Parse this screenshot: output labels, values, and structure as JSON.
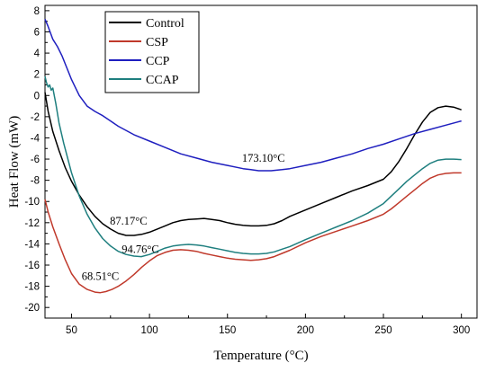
{
  "chart_data": {
    "type": "line",
    "xlabel": "Temperature (°C)",
    "ylabel": "Heat Flow (mW)",
    "xlim": [
      33,
      310
    ],
    "ylim": [
      -21,
      8.5
    ],
    "xticks": [
      50,
      100,
      150,
      200,
      250,
      300
    ],
    "yticks": [
      8,
      6,
      4,
      2,
      0,
      -2,
      -4,
      -6,
      -8,
      -10,
      -12,
      -14,
      -16,
      -18,
      -20
    ],
    "grid": false,
    "legend_position": "top-left",
    "series": [
      {
        "name": "Control",
        "color": "#000000",
        "x": [
          33,
          35,
          38,
          42,
          46,
          50,
          55,
          60,
          65,
          70,
          75,
          80,
          85,
          90,
          95,
          100,
          105,
          110,
          115,
          120,
          125,
          130,
          135,
          140,
          145,
          150,
          155,
          160,
          165,
          170,
          175,
          180,
          185,
          190,
          200,
          210,
          220,
          230,
          240,
          250,
          255,
          260,
          265,
          270,
          275,
          280,
          285,
          290,
          295,
          300
        ],
        "y": [
          0.3,
          -1.5,
          -3.4,
          -5.2,
          -6.8,
          -8.1,
          -9.4,
          -10.5,
          -11.4,
          -12.1,
          -12.6,
          -13.0,
          -13.2,
          -13.2,
          -13.1,
          -12.9,
          -12.6,
          -12.3,
          -12.0,
          -11.8,
          -11.7,
          -11.65,
          -11.6,
          -11.7,
          -11.8,
          -12.0,
          -12.15,
          -12.25,
          -12.3,
          -12.3,
          -12.25,
          -12.1,
          -11.8,
          -11.4,
          -10.8,
          -10.2,
          -9.6,
          -9.0,
          -8.5,
          -7.9,
          -7.2,
          -6.2,
          -5.0,
          -3.7,
          -2.5,
          -1.6,
          -1.15,
          -1.0,
          -1.1,
          -1.35
        ]
      },
      {
        "name": "CSP",
        "color": "#c0392b",
        "x": [
          33,
          35,
          38,
          42,
          46,
          50,
          55,
          60,
          65,
          68.51,
          72,
          76,
          80,
          85,
          90,
          95,
          100,
          105,
          110,
          115,
          120,
          125,
          130,
          135,
          140,
          145,
          150,
          155,
          160,
          165,
          170,
          175,
          180,
          185,
          190,
          200,
          210,
          220,
          230,
          240,
          250,
          255,
          260,
          265,
          270,
          275,
          280,
          285,
          290,
          295,
          300
        ],
        "y": [
          -9.8,
          -11.0,
          -12.4,
          -14.0,
          -15.5,
          -16.8,
          -17.8,
          -18.3,
          -18.55,
          -18.6,
          -18.5,
          -18.3,
          -18.0,
          -17.5,
          -16.9,
          -16.2,
          -15.6,
          -15.1,
          -14.8,
          -14.6,
          -14.55,
          -14.6,
          -14.7,
          -14.9,
          -15.05,
          -15.2,
          -15.35,
          -15.45,
          -15.5,
          -15.55,
          -15.5,
          -15.4,
          -15.2,
          -14.9,
          -14.6,
          -13.9,
          -13.3,
          -12.8,
          -12.3,
          -11.8,
          -11.2,
          -10.7,
          -10.1,
          -9.5,
          -8.9,
          -8.3,
          -7.8,
          -7.5,
          -7.35,
          -7.3,
          -7.3
        ]
      },
      {
        "name": "CCP",
        "color": "#1f1fbf",
        "x": [
          33,
          35,
          38,
          41,
          44,
          47,
          50,
          55,
          60,
          65,
          70,
          75,
          80,
          90,
          100,
          110,
          120,
          130,
          140,
          150,
          160,
          165,
          170,
          173.1,
          178,
          185,
          190,
          200,
          210,
          220,
          230,
          240,
          250,
          260,
          270,
          280,
          290,
          300
        ],
        "y": [
          7.2,
          6.5,
          5.3,
          4.6,
          3.7,
          2.6,
          1.5,
          0.0,
          -1.0,
          -1.5,
          -1.9,
          -2.4,
          -2.9,
          -3.7,
          -4.3,
          -4.9,
          -5.5,
          -5.9,
          -6.3,
          -6.6,
          -6.9,
          -7.0,
          -7.1,
          -7.1,
          -7.1,
          -7.0,
          -6.9,
          -6.6,
          -6.3,
          -5.9,
          -5.5,
          -5.0,
          -4.6,
          -4.1,
          -3.6,
          -3.2,
          -2.8,
          -2.4
        ]
      },
      {
        "name": "CCAP",
        "color": "#1f7f7f",
        "x": [
          33,
          34,
          35,
          36,
          37,
          38,
          40,
          42,
          45,
          50,
          55,
          60,
          65,
          70,
          75,
          80,
          85,
          90,
          94.76,
          100,
          105,
          110,
          115,
          120,
          125,
          130,
          135,
          140,
          145,
          150,
          155,
          160,
          165,
          170,
          175,
          180,
          185,
          190,
          200,
          210,
          220,
          230,
          240,
          250,
          255,
          260,
          265,
          270,
          275,
          280,
          285,
          290,
          295,
          300
        ],
        "y": [
          1.8,
          1.2,
          0.8,
          1.0,
          0.5,
          0.7,
          -0.8,
          -2.6,
          -4.5,
          -7.3,
          -9.5,
          -11.2,
          -12.5,
          -13.5,
          -14.2,
          -14.7,
          -15.0,
          -15.15,
          -15.2,
          -15.0,
          -14.7,
          -14.4,
          -14.2,
          -14.1,
          -14.05,
          -14.1,
          -14.2,
          -14.35,
          -14.5,
          -14.65,
          -14.8,
          -14.9,
          -14.95,
          -14.95,
          -14.9,
          -14.75,
          -14.5,
          -14.25,
          -13.6,
          -13.0,
          -12.4,
          -11.8,
          -11.1,
          -10.2,
          -9.5,
          -8.8,
          -8.1,
          -7.5,
          -6.9,
          -6.4,
          -6.1,
          -6.0,
          -6.0,
          -6.05
        ]
      }
    ],
    "annotations": [
      {
        "text": "173.10°C",
        "x": 173.1,
        "y": -7.1
      },
      {
        "text": "87.17°C",
        "x": 87.17,
        "y": -13.2
      },
      {
        "text": "94.76°C",
        "x": 94.76,
        "y": -15.2
      },
      {
        "text": "68.51°C",
        "x": 68.51,
        "y": -18.6
      }
    ]
  }
}
